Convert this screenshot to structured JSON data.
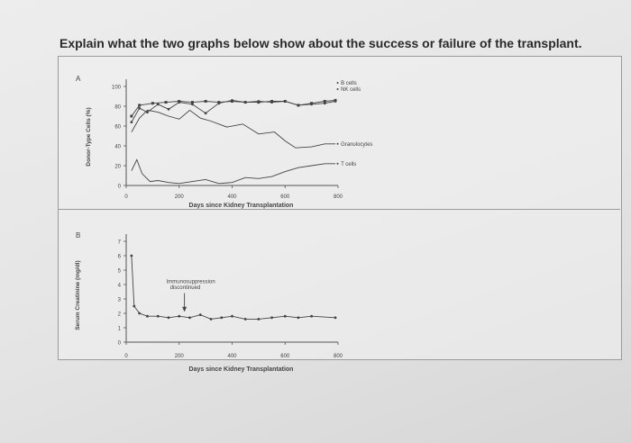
{
  "question": "Explain what the two graphs below show about the success or failure of the transplant.",
  "colors": {
    "ink": "#444444",
    "axis": "#555555"
  },
  "chart_data": [
    {
      "panel_label": "A",
      "type": "line",
      "xlabel": "Days since Kidney Transplantation",
      "ylabel": "Donor-Type Cells (%)",
      "xlim": [
        0,
        800
      ],
      "ylim": [
        0,
        100
      ],
      "x_ticks": [
        "0",
        "200",
        "400",
        "600",
        "800"
      ],
      "y_ticks": [
        "0",
        "20",
        "40",
        "60",
        "80",
        "100"
      ],
      "legend_placement": "right, beside line ends",
      "series": [
        {
          "name": "B cells",
          "points": [
            [
              20,
              70
            ],
            [
              50,
              81
            ],
            [
              100,
              83
            ],
            [
              150,
              84
            ],
            [
              200,
              85
            ],
            [
              250,
              84
            ],
            [
              300,
              85
            ],
            [
              350,
              84
            ],
            [
              400,
              85
            ],
            [
              450,
              84
            ],
            [
              500,
              84
            ],
            [
              550,
              85
            ],
            [
              600,
              85
            ],
            [
              650,
              81
            ],
            [
              700,
              83
            ],
            [
              750,
              85
            ],
            [
              790,
              86
            ]
          ]
        },
        {
          "name": "NK cells",
          "points": [
            [
              20,
              64
            ],
            [
              50,
              78
            ],
            [
              80,
              74
            ],
            [
              120,
              82
            ],
            [
              160,
              77
            ],
            [
              200,
              84
            ],
            [
              250,
              82
            ],
            [
              300,
              73
            ],
            [
              350,
              83
            ],
            [
              400,
              86
            ],
            [
              450,
              84
            ],
            [
              500,
              85
            ],
            [
              550,
              84
            ],
            [
              600,
              85
            ],
            [
              650,
              81
            ],
            [
              700,
              82
            ],
            [
              750,
              83
            ],
            [
              790,
              85
            ]
          ]
        },
        {
          "name": "Granulocytes",
          "points": [
            [
              20,
              54
            ],
            [
              50,
              68
            ],
            [
              80,
              76
            ],
            [
              120,
              74
            ],
            [
              160,
              70
            ],
            [
              200,
              67
            ],
            [
              240,
              76
            ],
            [
              280,
              68
            ],
            [
              320,
              65
            ],
            [
              380,
              59
            ],
            [
              440,
              62
            ],
            [
              500,
              52
            ],
            [
              560,
              54
            ],
            [
              600,
              45
            ],
            [
              640,
              38
            ],
            [
              700,
              39
            ],
            [
              750,
              42
            ],
            [
              790,
              42
            ]
          ]
        },
        {
          "name": "T cells",
          "points": [
            [
              20,
              15
            ],
            [
              40,
              26
            ],
            [
              60,
              12
            ],
            [
              90,
              4
            ],
            [
              120,
              5
            ],
            [
              160,
              3
            ],
            [
              200,
              2
            ],
            [
              250,
              4
            ],
            [
              300,
              6
            ],
            [
              350,
              2
            ],
            [
              400,
              3
            ],
            [
              450,
              8
            ],
            [
              500,
              7
            ],
            [
              550,
              9
            ],
            [
              600,
              14
            ],
            [
              650,
              18
            ],
            [
              700,
              20
            ],
            [
              750,
              22
            ],
            [
              790,
              22
            ]
          ]
        }
      ]
    },
    {
      "panel_label": "B",
      "type": "line",
      "xlabel": "Days since Kidney Transplantation",
      "ylabel": "Serum Creatinine (mg/dl)",
      "xlim": [
        0,
        800
      ],
      "ylim": [
        0,
        7
      ],
      "x_ticks": [
        "0",
        "200",
        "400",
        "600",
        "800"
      ],
      "y_ticks": [
        "0",
        "1",
        "2",
        "3",
        "4",
        "5",
        "6",
        "7"
      ],
      "annotation": "Immunosuppression discontinued",
      "annotation_x": 220,
      "series": [
        {
          "points": [
            [
              20,
              6.0
            ],
            [
              30,
              2.5
            ],
            [
              50,
              2.0
            ],
            [
              80,
              1.8
            ],
            [
              120,
              1.8
            ],
            [
              160,
              1.7
            ],
            [
              200,
              1.8
            ],
            [
              240,
              1.7
            ],
            [
              280,
              1.9
            ],
            [
              320,
              1.6
            ],
            [
              360,
              1.7
            ],
            [
              400,
              1.8
            ],
            [
              450,
              1.6
            ],
            [
              500,
              1.6
            ],
            [
              550,
              1.7
            ],
            [
              600,
              1.8
            ],
            [
              650,
              1.7
            ],
            [
              700,
              1.8
            ],
            [
              790,
              1.7
            ]
          ]
        }
      ]
    }
  ]
}
